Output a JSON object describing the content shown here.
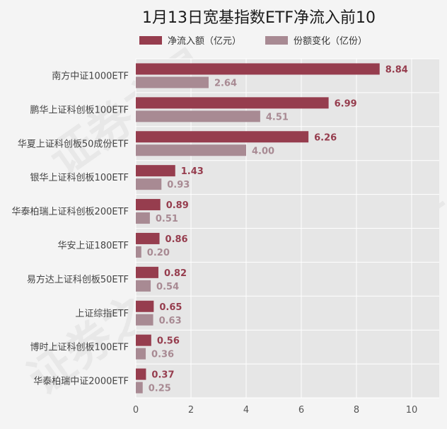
{
  "chart_data": {
    "type": "bar",
    "orientation": "horizontal",
    "title": "1月13日宽基指数ETF净流入前10",
    "categories": [
      "南方中证1000ETF",
      "鹏华上证科创板100ETF",
      "华夏上证科创板50成份ETF",
      "银华上证科创板100ETF",
      "华泰柏瑞上证科创板200ETF",
      "华安上证180ETF",
      "易方达上证科创板50ETF",
      "上证综指ETF",
      "博时上证科创板100ETF",
      "华泰柏瑞中证2000ETF"
    ],
    "series": [
      {
        "name": "净流入额（亿元）",
        "color": "#963d4e",
        "values": [
          8.84,
          6.99,
          6.26,
          1.43,
          0.89,
          0.86,
          0.82,
          0.65,
          0.56,
          0.37
        ],
        "labels": [
          "8.84",
          "6.99",
          "6.26",
          "1.43",
          "0.89",
          "0.86",
          "0.82",
          "0.65",
          "0.56",
          "0.37"
        ]
      },
      {
        "name": "份额变化（亿份）",
        "color": "#a88a93",
        "values": [
          2.64,
          4.51,
          4.0,
          0.93,
          0.51,
          0.2,
          0.54,
          0.63,
          0.36,
          0.25
        ],
        "labels": [
          "2.64",
          "4.51",
          "4.00",
          "0.93",
          "0.51",
          "0.20",
          "0.54",
          "0.63",
          "0.36",
          "0.25"
        ]
      }
    ],
    "xlim": [
      0,
      11
    ],
    "xticks": [
      "0",
      "2",
      "4",
      "6",
      "8",
      "10"
    ],
    "grid": true,
    "legend_position": "top",
    "background": "#e6e6e6",
    "page_background": "#f4f4f4",
    "watermark": "证券之星"
  }
}
